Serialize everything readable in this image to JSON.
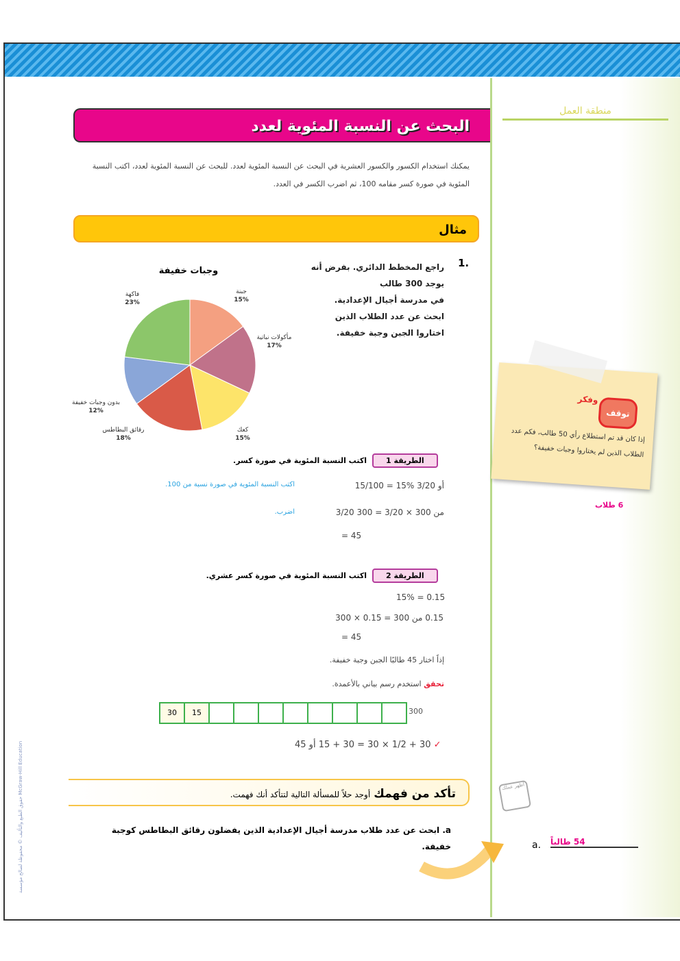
{
  "lesson": {
    "title": "البحث عن النسبة المئوية لعدد",
    "intro": "يمكنك استخدام الكسور والكسور العشرية في البحث عن النسبة المئوية لعدد. للبحث عن النسبة المئوية لعدد، اكتب النسبة المئوية في صورة كسر مقامه 100، ثم اضرب الكسر في العدد.",
    "example_label": "مثال"
  },
  "question1": {
    "number": "1.",
    "lines": [
      "راجع المخطط الدائري. بفرض أنه",
      "يوجد 300 طالب",
      "في مدرسة أجيال الإعدادية.",
      "ابحث عن عدد الطلاب الذين",
      "اختاروا الجبن وجبة خفيفة."
    ]
  },
  "chart_data": {
    "type": "pie",
    "title": "وجبات خفيفة",
    "slices": [
      {
        "label": "جبنة",
        "value": 15,
        "text": "15%",
        "color": "#f4a081"
      },
      {
        "label": "مأكولات نباتية",
        "value": 17,
        "text": "17%",
        "color": "#c0728a"
      },
      {
        "label": "كعك",
        "value": 15,
        "text": "15%",
        "color": "#fde46a"
      },
      {
        "label": "رقائق البطاطس",
        "value": 18,
        "text": "18%",
        "color": "#d95a48"
      },
      {
        "label": "بدون وجبات خفيفة",
        "value": 12,
        "text": "12%",
        "color": "#8aa6d8"
      },
      {
        "label": "فاكهة",
        "value": 23,
        "text": "23%",
        "color": "#8cc66a"
      }
    ]
  },
  "method1": {
    "label": "الطريقة 1",
    "desc": "اكتب النسبة المئوية في صورة كسر.",
    "line1": "15/100 = 15% أو 3/20",
    "note1": "اكتب النسبة المئوية في صورة نسبة من 100.",
    "line2": "3/20 من 300 × 3/20 = 300",
    "note2": "اضرب.",
    "line3": "= 45"
  },
  "method2": {
    "label": "الطريقة 2",
    "desc": "اكتب النسبة المئوية في صورة كسر عشري.",
    "line1": "15% = 0.15",
    "line2": "0.15 من 300 = 0.15 × 300",
    "line3": "= 45",
    "conclusion": "إذاً اختار 45 طالبًا الجبن وجبة خفيفة.",
    "check_label": "تحقق",
    "check_text": "استخدم رسم بياني بالأعمدة."
  },
  "bar_model": {
    "cells": [
      "30",
      "15",
      "",
      "",
      "",
      "",
      "",
      "",
      "",
      ""
    ],
    "total": "300"
  },
  "verify": {
    "text": "30 + 1/2 × 30 = 30 + 15 أو 45",
    "mark": "✓"
  },
  "check_understanding": {
    "title": "تأكد من فهمك",
    "text": "أوجد حلاً للمسألة التالية لتتأكد أنك فهمت.",
    "question_letter": "a.",
    "question": "ابحث عن عدد طلاب مدرسة أجيال الإعدادية الذين يفضلون رقائق البطاطس كوجبة خفيفة."
  },
  "workspace": {
    "title": "منطقة العمل",
    "sticky_title": "توقف",
    "sticky_sub": "وفكر",
    "sticky_text": "إذا كان قد تم استطلاع رأي 50 طالب، فكم عدد الطلاب الذين لم يختاروا وجبات خفيفة؟",
    "sticky_answer": "6 طلاب",
    "answer_letter": "a.",
    "answer": "54 طالباً",
    "icon_text": "أظهر عملك"
  },
  "side_text": "حقوق الطبع والتأليف © محفوظة لصالح مؤسسة McGraw-Hill Education",
  "colors": {
    "title": "#e8068a",
    "example": "#ffc60a",
    "note": "#2aa3e0",
    "answer": "#e8068a"
  }
}
